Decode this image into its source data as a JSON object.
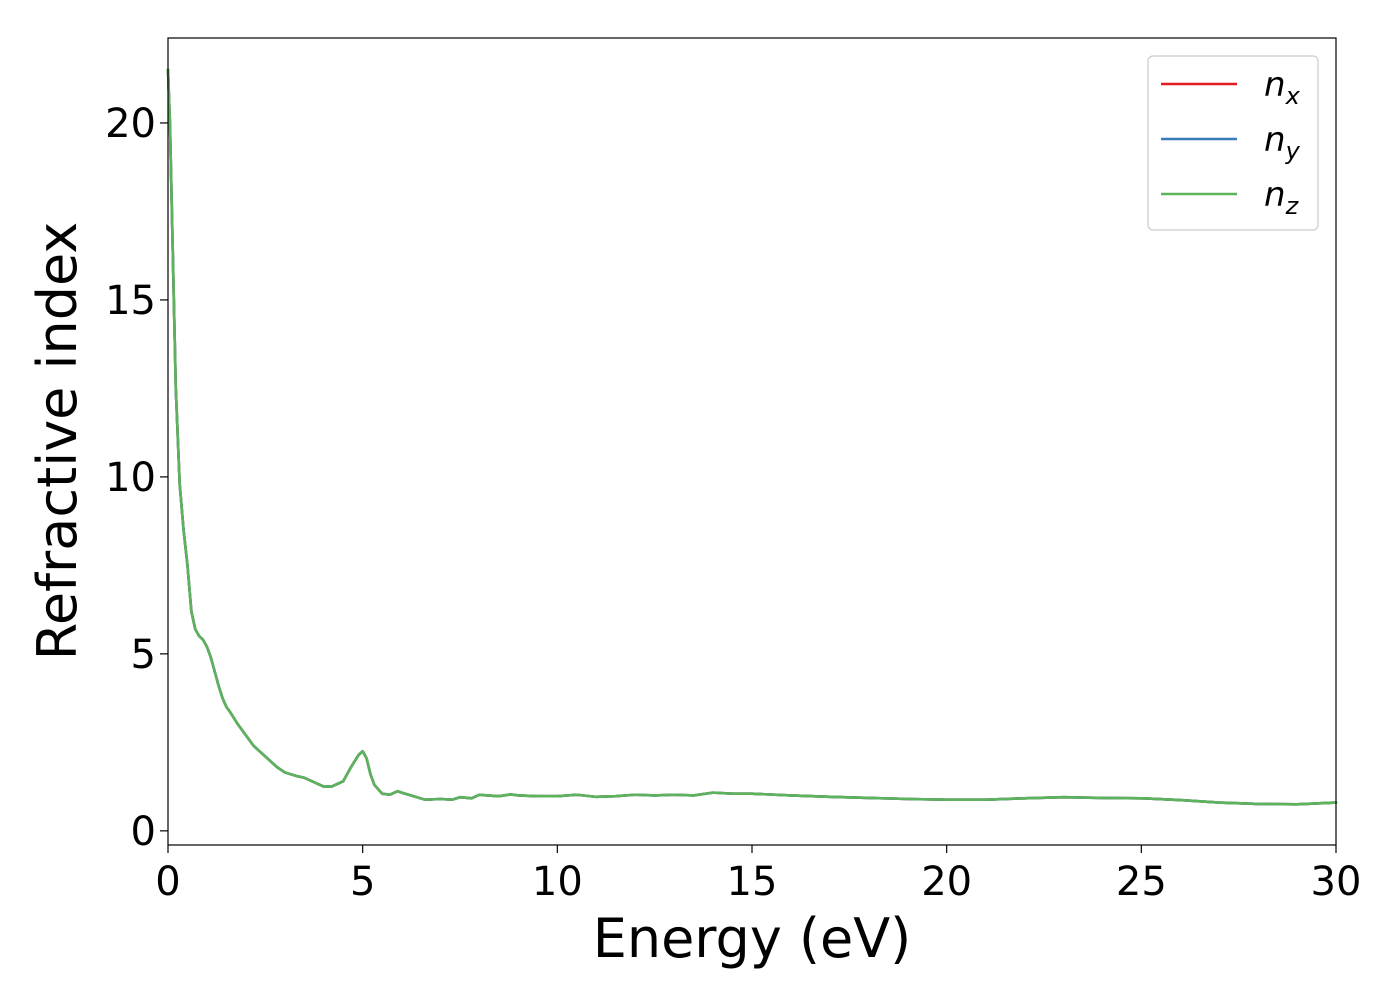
{
  "chart_data": {
    "type": "line",
    "xlabel": "Energy (eV)",
    "ylabel": "Refractive index",
    "xlim": [
      0,
      30
    ],
    "ylim": [
      -0.4,
      22.4
    ],
    "x_ticks": [
      0,
      5,
      10,
      15,
      20,
      25,
      30
    ],
    "y_ticks": [
      0,
      5,
      10,
      15,
      20
    ],
    "grid": false,
    "legend_position": "top-right",
    "series": [
      {
        "name": "n_x",
        "base": "n",
        "sub": "x",
        "color": "#e41a1c",
        "x": [
          0.0,
          0.05,
          0.1,
          0.2,
          0.3,
          0.4,
          0.5,
          0.6,
          0.7,
          0.8,
          0.9,
          1.0,
          1.1,
          1.2,
          1.3,
          1.4,
          1.5,
          1.6,
          1.8,
          2.0,
          2.2,
          2.4,
          2.6,
          2.8,
          3.0,
          3.3,
          3.5,
          3.8,
          4.0,
          4.2,
          4.5,
          4.7,
          4.9,
          5.0,
          5.1,
          5.2,
          5.3,
          5.5,
          5.7,
          5.9,
          6.0,
          6.3,
          6.6,
          7.0,
          7.3,
          7.5,
          7.8,
          8.0,
          8.2,
          8.5,
          8.8,
          9.0,
          9.5,
          10.0,
          10.5,
          11.0,
          11.5,
          12.0,
          12.5,
          13.0,
          13.5,
          14.0,
          14.5,
          15.0,
          16.0,
          17.0,
          18.0,
          19.0,
          20.0,
          21.0,
          22.0,
          23.0,
          24.0,
          25.0,
          26.0,
          27.0,
          28.0,
          29.0,
          30.0
        ],
        "y": [
          21.5,
          20.0,
          17.5,
          12.5,
          9.8,
          8.5,
          7.5,
          6.2,
          5.7,
          5.5,
          5.4,
          5.2,
          4.9,
          4.5,
          4.1,
          3.75,
          3.5,
          3.35,
          3.0,
          2.7,
          2.4,
          2.2,
          2.0,
          1.8,
          1.65,
          1.55,
          1.5,
          1.35,
          1.25,
          1.25,
          1.4,
          1.8,
          2.15,
          2.25,
          2.05,
          1.6,
          1.3,
          1.05,
          1.02,
          1.12,
          1.08,
          0.98,
          0.88,
          0.9,
          0.88,
          0.95,
          0.92,
          1.02,
          1.0,
          0.98,
          1.03,
          1.0,
          0.98,
          0.98,
          1.02,
          0.96,
          0.98,
          1.02,
          1.0,
          1.02,
          1.0,
          1.08,
          1.05,
          1.05,
          1.0,
          0.96,
          0.93,
          0.9,
          0.88,
          0.88,
          0.92,
          0.95,
          0.93,
          0.92,
          0.87,
          0.8,
          0.76,
          0.75,
          0.8
        ]
      },
      {
        "name": "n_y",
        "base": "n",
        "sub": "y",
        "color": "#377eb8",
        "x": [
          0.0,
          0.05,
          0.1,
          0.2,
          0.3,
          0.4,
          0.5,
          0.6,
          0.7,
          0.8,
          0.9,
          1.0,
          1.1,
          1.2,
          1.3,
          1.4,
          1.5,
          1.6,
          1.8,
          2.0,
          2.2,
          2.4,
          2.6,
          2.8,
          3.0,
          3.3,
          3.5,
          3.8,
          4.0,
          4.2,
          4.5,
          4.7,
          4.9,
          5.0,
          5.1,
          5.2,
          5.3,
          5.5,
          5.7,
          5.9,
          6.0,
          6.3,
          6.6,
          7.0,
          7.3,
          7.5,
          7.8,
          8.0,
          8.2,
          8.5,
          8.8,
          9.0,
          9.5,
          10.0,
          10.5,
          11.0,
          11.5,
          12.0,
          12.5,
          13.0,
          13.5,
          14.0,
          14.5,
          15.0,
          16.0,
          17.0,
          18.0,
          19.0,
          20.0,
          21.0,
          22.0,
          23.0,
          24.0,
          25.0,
          26.0,
          27.0,
          28.0,
          29.0,
          30.0
        ],
        "y": [
          21.5,
          20.0,
          17.5,
          12.5,
          9.8,
          8.5,
          7.5,
          6.2,
          5.7,
          5.5,
          5.4,
          5.2,
          4.9,
          4.5,
          4.1,
          3.75,
          3.5,
          3.35,
          3.0,
          2.7,
          2.4,
          2.2,
          2.0,
          1.8,
          1.65,
          1.55,
          1.5,
          1.35,
          1.25,
          1.25,
          1.4,
          1.8,
          2.15,
          2.25,
          2.05,
          1.6,
          1.3,
          1.05,
          1.02,
          1.12,
          1.08,
          0.98,
          0.88,
          0.9,
          0.88,
          0.95,
          0.92,
          1.02,
          1.0,
          0.98,
          1.03,
          1.0,
          0.98,
          0.98,
          1.02,
          0.96,
          0.98,
          1.02,
          1.0,
          1.02,
          1.0,
          1.08,
          1.05,
          1.05,
          1.0,
          0.96,
          0.93,
          0.9,
          0.88,
          0.88,
          0.92,
          0.95,
          0.93,
          0.92,
          0.87,
          0.8,
          0.76,
          0.75,
          0.8
        ]
      },
      {
        "name": "n_z",
        "base": "n",
        "sub": "z",
        "color": "#5bb35b",
        "x": [
          0.0,
          0.05,
          0.1,
          0.2,
          0.3,
          0.4,
          0.5,
          0.6,
          0.7,
          0.8,
          0.9,
          1.0,
          1.1,
          1.2,
          1.3,
          1.4,
          1.5,
          1.6,
          1.8,
          2.0,
          2.2,
          2.4,
          2.6,
          2.8,
          3.0,
          3.3,
          3.5,
          3.8,
          4.0,
          4.2,
          4.5,
          4.7,
          4.9,
          5.0,
          5.1,
          5.2,
          5.3,
          5.5,
          5.7,
          5.9,
          6.0,
          6.3,
          6.6,
          7.0,
          7.3,
          7.5,
          7.8,
          8.0,
          8.2,
          8.5,
          8.8,
          9.0,
          9.5,
          10.0,
          10.5,
          11.0,
          11.5,
          12.0,
          12.5,
          13.0,
          13.5,
          14.0,
          14.5,
          15.0,
          16.0,
          17.0,
          18.0,
          19.0,
          20.0,
          21.0,
          22.0,
          23.0,
          24.0,
          25.0,
          26.0,
          27.0,
          28.0,
          29.0,
          30.0
        ],
        "y": [
          21.5,
          20.0,
          17.5,
          12.5,
          9.8,
          8.5,
          7.5,
          6.2,
          5.7,
          5.5,
          5.4,
          5.2,
          4.9,
          4.5,
          4.1,
          3.75,
          3.5,
          3.35,
          3.0,
          2.7,
          2.4,
          2.2,
          2.0,
          1.8,
          1.65,
          1.55,
          1.5,
          1.35,
          1.25,
          1.25,
          1.4,
          1.8,
          2.15,
          2.25,
          2.05,
          1.6,
          1.3,
          1.05,
          1.02,
          1.12,
          1.08,
          0.98,
          0.88,
          0.9,
          0.88,
          0.95,
          0.92,
          1.02,
          1.0,
          0.98,
          1.03,
          1.0,
          0.98,
          0.98,
          1.02,
          0.96,
          0.98,
          1.02,
          1.0,
          1.02,
          1.0,
          1.08,
          1.05,
          1.05,
          1.0,
          0.96,
          0.93,
          0.9,
          0.88,
          0.88,
          0.92,
          0.95,
          0.93,
          0.92,
          0.87,
          0.8,
          0.76,
          0.75,
          0.8
        ]
      }
    ]
  }
}
